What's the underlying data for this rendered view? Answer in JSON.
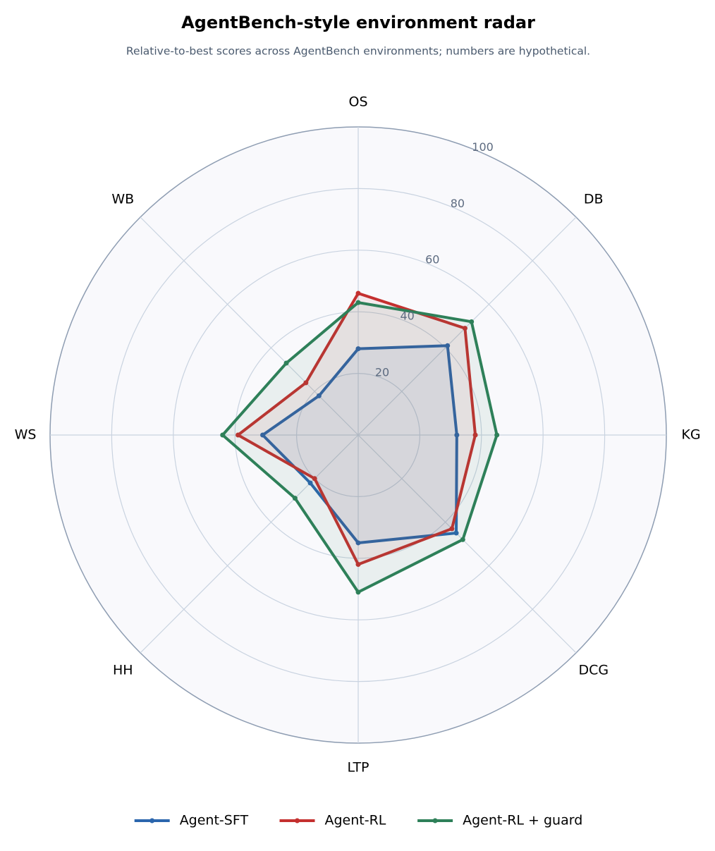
{
  "chart_data": {
    "type": "radar",
    "title": "AgentBench-style environment radar",
    "subtitle": "Relative-to-best scores across AgentBench environments; numbers are hypothetical.",
    "categories": [
      "OS",
      "DB",
      "KG",
      "DCG",
      "LTP",
      "HH",
      "WS",
      "WB"
    ],
    "ylim": [
      0,
      100
    ],
    "yticks": [
      20,
      40,
      60,
      80,
      100
    ],
    "grid": true,
    "series": [
      {
        "name": "Agent-SFT",
        "color": "#2b66ad",
        "values": [
          28,
          41,
          32,
          45,
          35,
          22,
          31,
          18
        ]
      },
      {
        "name": "Agent-RL",
        "color": "#c4302f",
        "values": [
          46,
          49,
          38,
          43,
          42,
          20,
          39,
          24
        ]
      },
      {
        "name": "Agent-RL + guard",
        "color": "#2e8059",
        "values": [
          43,
          52,
          45,
          48,
          51,
          29,
          44,
          33
        ]
      }
    ]
  }
}
